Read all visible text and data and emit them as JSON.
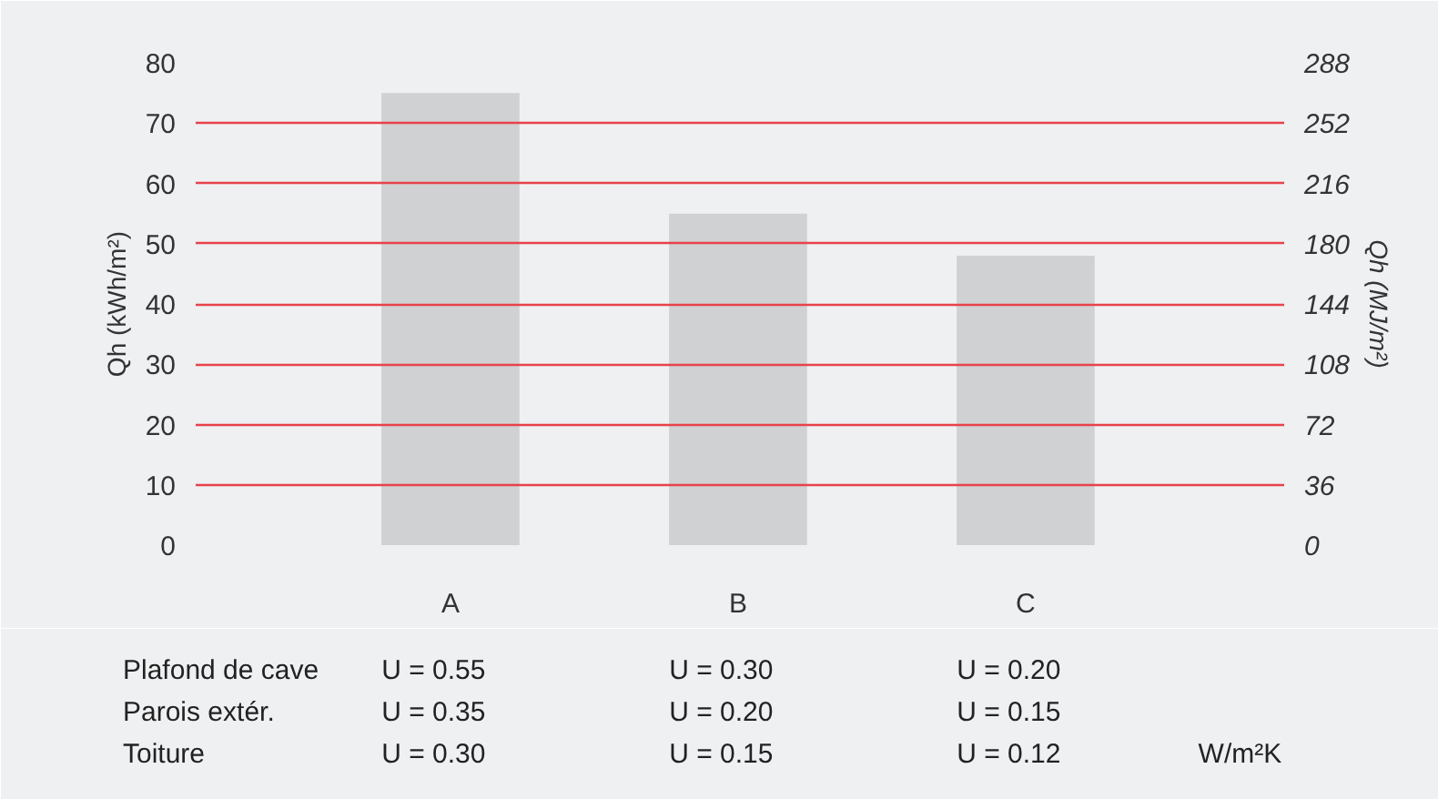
{
  "chart_data": {
    "type": "bar",
    "categories": [
      "A",
      "B",
      "C"
    ],
    "values": [
      75,
      55,
      48
    ],
    "color": "#d0d1d3",
    "ylabel": "Qh (kWh/m²)",
    "y2label": "Qh (MJ/m²)",
    "ylim": [
      0,
      80
    ],
    "yticks": [
      0,
      10,
      20,
      30,
      40,
      50,
      60,
      70,
      80
    ],
    "y2lim": [
      0,
      288
    ],
    "y2ticks": [
      0,
      36,
      72,
      108,
      144,
      180,
      216,
      252,
      288
    ],
    "grid": "y",
    "annotations": [
      "Plafond de cave",
      "U = 0.55",
      "U = 0.30",
      "U = 0.20",
      "Parois extér.",
      "U = 0.35",
      "U = 0.20",
      "U = 0.15",
      "Toiture",
      "U = 0.30",
      "U = 0.15",
      "U = 0.12",
      "W/m²K"
    ]
  }
}
